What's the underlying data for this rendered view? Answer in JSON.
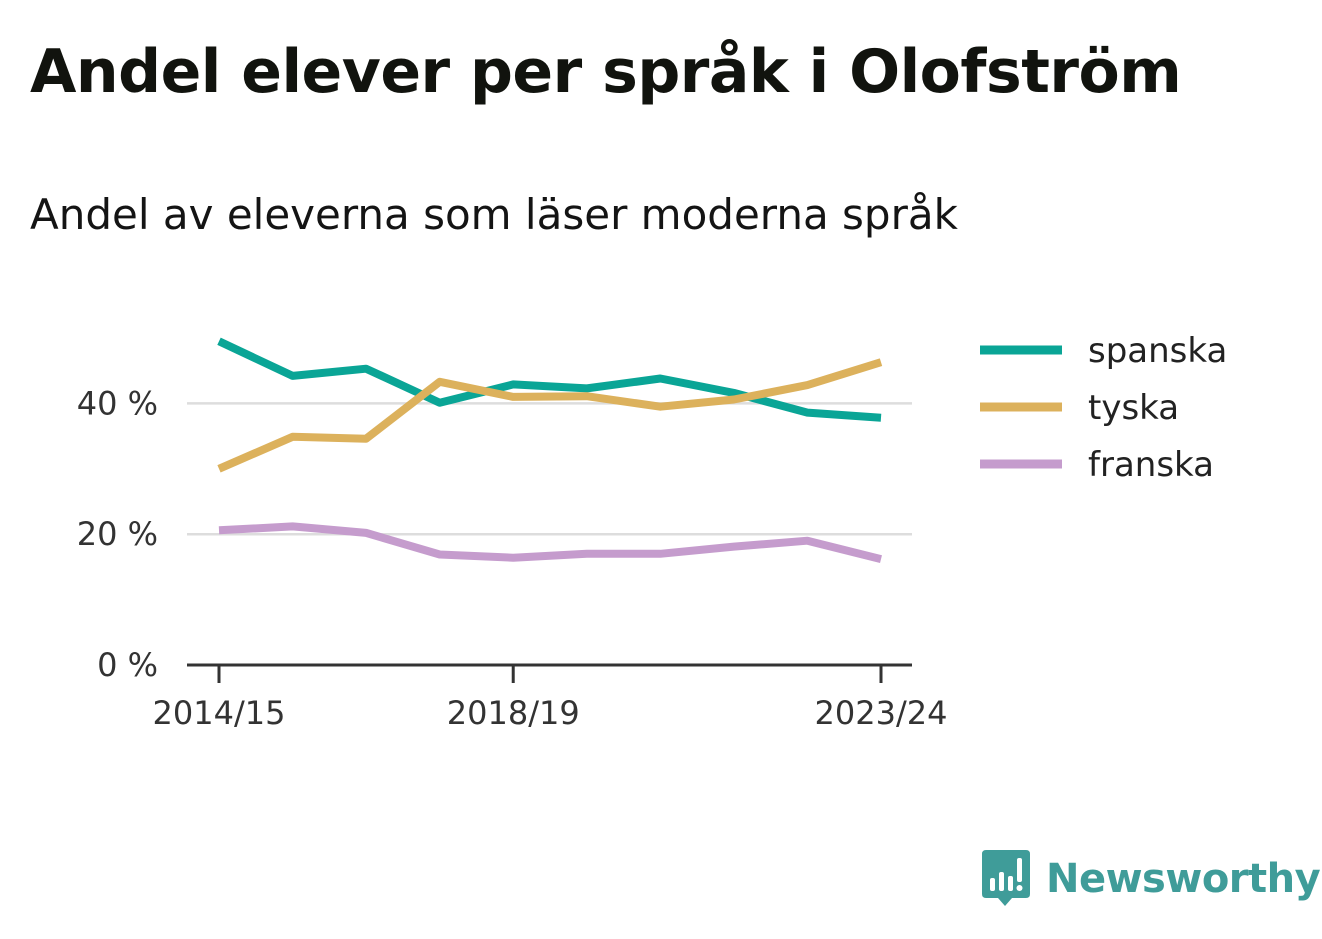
{
  "title": "Andel elever per språk i Olofström",
  "subtitle": "Andel av eleverna som läser moderna språk",
  "brand": {
    "name": "Newsworthy",
    "color": "#3f9c99",
    "icon": "newsworthy-logo-icon"
  },
  "colors": {
    "gridline": "#dddddd",
    "axis": "#333333"
  },
  "chart_data": {
    "type": "line",
    "title": "Andel av eleverna som läser moderna språk",
    "xlabel": "",
    "ylabel": "",
    "x": [
      "2014/15",
      "2015/16",
      "2016/17",
      "2017/18",
      "2018/19",
      "2019/20",
      "2020/21",
      "2021/22",
      "2022/23",
      "2023/24"
    ],
    "x_tick_labels": [
      "2014/15",
      "2018/19",
      "2023/24"
    ],
    "y_ticks": [
      0,
      20,
      40
    ],
    "y_tick_labels": [
      "0 %",
      "20 %",
      "40 %"
    ],
    "ylim": [
      0,
      50
    ],
    "grid": true,
    "legend_position": "right",
    "series": [
      {
        "name": "spanska",
        "color": "#0aa596",
        "values": [
          49.5,
          44.2,
          45.3,
          40.1,
          42.9,
          42.3,
          43.8,
          41.6,
          38.6,
          37.8
        ]
      },
      {
        "name": "tyska",
        "color": "#dcb15c",
        "values": [
          30.0,
          34.9,
          34.6,
          43.3,
          41.0,
          41.1,
          39.5,
          40.6,
          42.8,
          46.3
        ]
      },
      {
        "name": "franska",
        "color": "#c59ccd",
        "values": [
          20.6,
          21.2,
          20.2,
          16.9,
          16.4,
          17.0,
          17.0,
          18.1,
          19.0,
          16.2
        ]
      }
    ]
  }
}
